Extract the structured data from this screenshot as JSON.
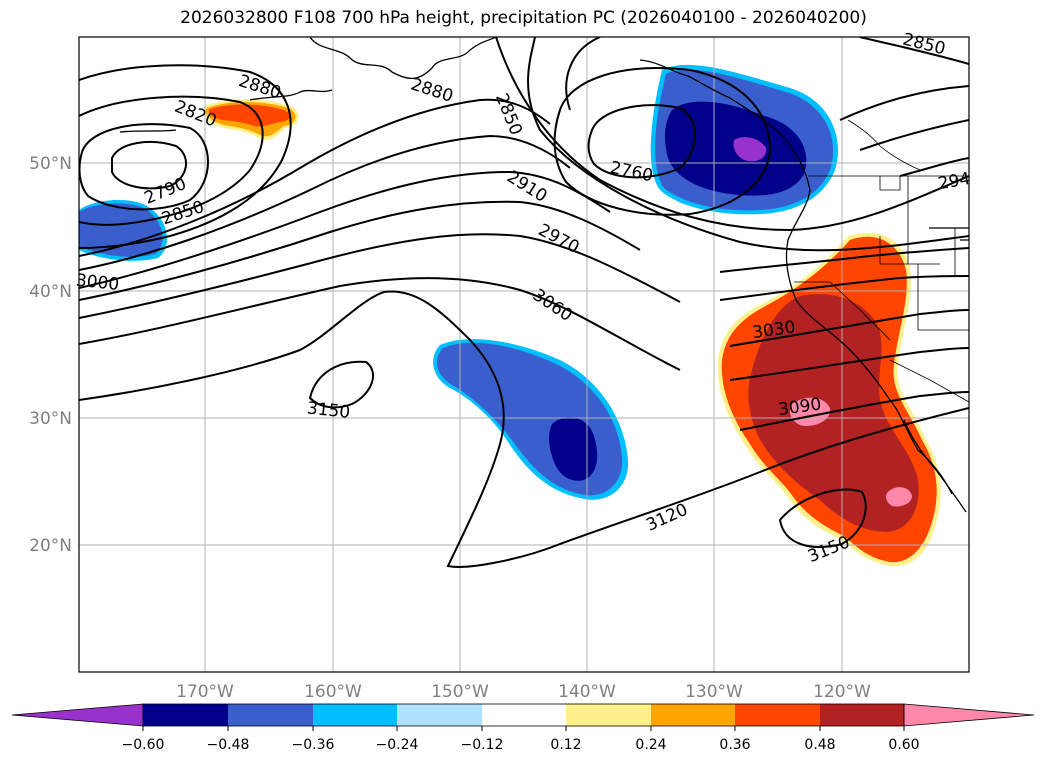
{
  "title": "2026032800 F108 700 hPa height, precipitation PC (2026040100 - 2026040200)",
  "map": {
    "lon_labels": [
      "170°W",
      "160°W",
      "150°W",
      "140°W",
      "130°W",
      "120°W"
    ],
    "lat_labels": [
      "50°N",
      "40°N",
      "30°N",
      "20°N"
    ],
    "contour_labels": [
      "2880",
      "2820",
      "2790",
      "2850",
      "2880",
      "2850",
      "2910",
      "2970",
      "3000",
      "3060",
      "3150",
      "2760",
      "3030",
      "3090",
      "3120",
      "3150",
      "2850",
      "294"
    ]
  },
  "colorbar": {
    "ticks": [
      "−0.60",
      "−0.48",
      "−0.36",
      "−0.24",
      "−0.12",
      "0.12",
      "0.24",
      "0.36",
      "0.48",
      "0.60"
    ],
    "colors": [
      "#9932cc",
      "#00008b",
      "#3a5fcd",
      "#00bfff",
      "#b0e2ff",
      "#ffffff",
      "#fff08c",
      "#ffa500",
      "#ff4500",
      "#b22222",
      "#ff88aa",
      "#ff88aa"
    ]
  }
}
